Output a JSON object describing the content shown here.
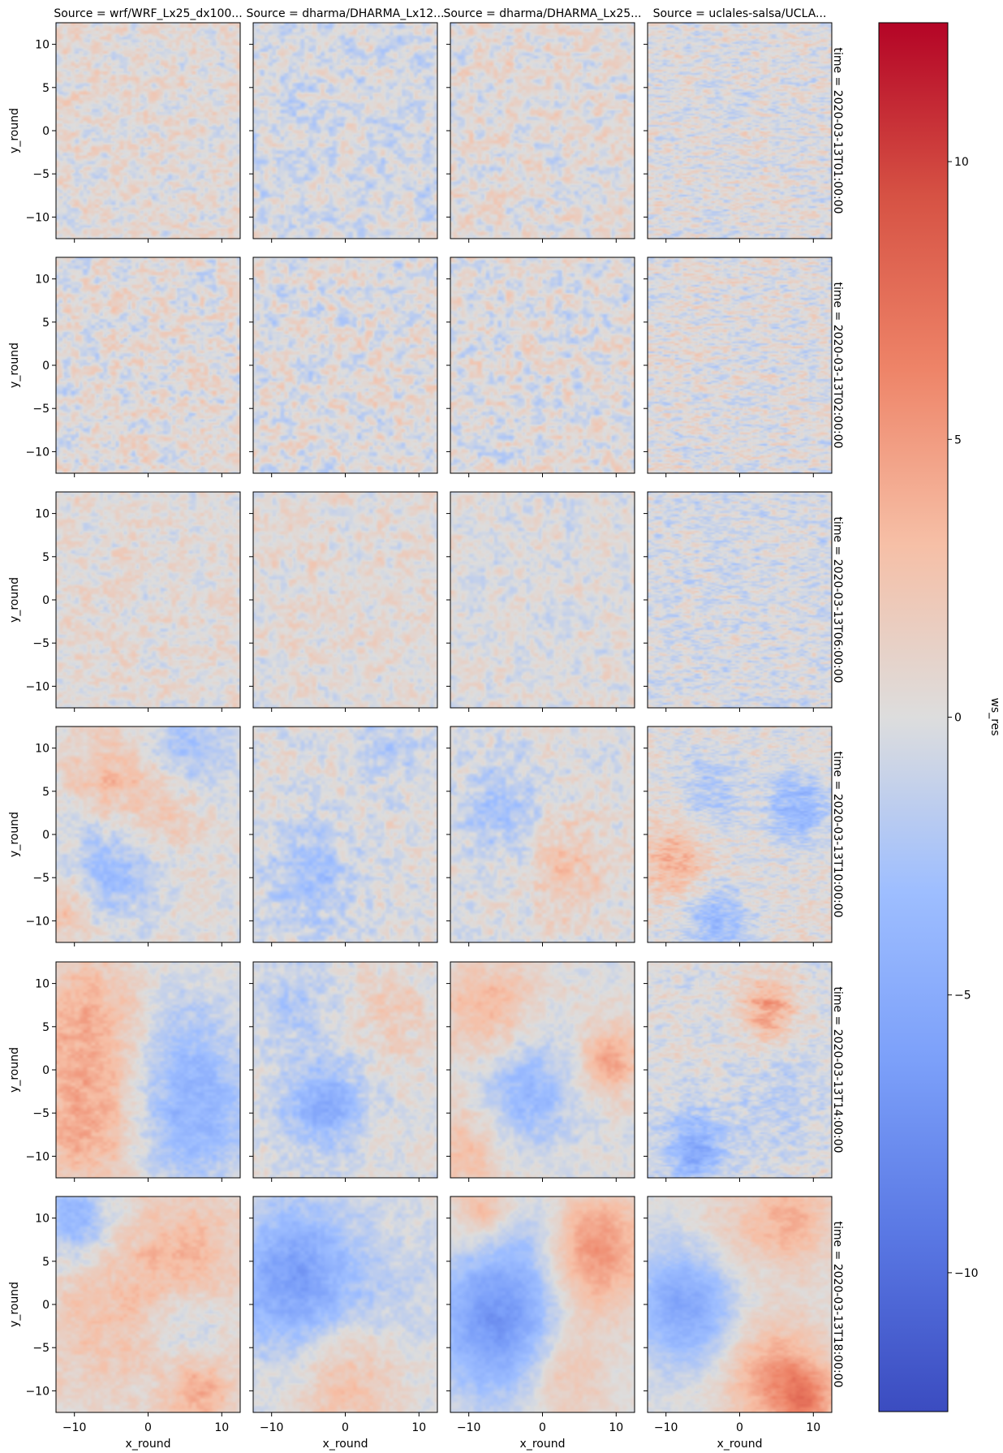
{
  "chart_data": {
    "type": "heatmap",
    "colormap": "coolwarm",
    "col_titles": [
      "Source = wrf/WRF_Lx25_dx100...",
      "Source = dharma/DHARMA_Lx12...",
      "Source = dharma/DHARMA_Lx25...",
      "Source = uclales-salsa/UCLA..."
    ],
    "row_titles": [
      "time = 2020-03-13T01:00:00",
      "time = 2020-03-13T02:00:00",
      "time = 2020-03-13T06:00:00",
      "time = 2020-03-13T10:00:00",
      "time = 2020-03-13T14:00:00",
      "time = 2020-03-13T18:00:00"
    ],
    "xlabel": "x_round",
    "ylabel": "y_round",
    "xlim": [
      -12.5,
      12.5
    ],
    "ylim": [
      -12.5,
      12.5
    ],
    "xticks": [
      -10,
      0,
      10
    ],
    "yticks": [
      -10,
      -5,
      0,
      5,
      10
    ],
    "colorbar": {
      "label": "ws_res",
      "vmin": -12.5,
      "vmax": 12.5,
      "ticks": [
        -10,
        -5,
        0,
        5,
        10
      ],
      "tick_labels": [
        "−10",
        "−5",
        "0",
        "5",
        "10"
      ]
    },
    "panel_patterns": [
      [
        {
          "blobs": [],
          "fine": 0.35,
          "bias": 0.03,
          "aniso": 1.4
        },
        {
          "blobs": [],
          "fine": 0.38,
          "bias": -0.04,
          "aniso": 1.2
        },
        {
          "blobs": [],
          "fine": 0.38,
          "bias": 0.02,
          "aniso": 1.2
        },
        {
          "blobs": [],
          "fine": 0.4,
          "bias": 0.0,
          "aniso": 3.5
        }
      ],
      [
        {
          "blobs": [],
          "fine": 0.42,
          "bias": 0.02,
          "aniso": 1.3
        },
        {
          "blobs": [],
          "fine": 0.42,
          "bias": 0.0,
          "aniso": 1.2
        },
        {
          "blobs": [],
          "fine": 0.42,
          "bias": 0.0,
          "aniso": 1.2
        },
        {
          "blobs": [],
          "fine": 0.42,
          "bias": 0.0,
          "aniso": 3.5
        }
      ],
      [
        {
          "blobs": [],
          "fine": 0.3,
          "bias": 0.03,
          "aniso": 1.3
        },
        {
          "blobs": [],
          "fine": 0.3,
          "bias": 0.03,
          "aniso": 1.1
        },
        {
          "blobs": [],
          "fine": 0.3,
          "bias": 0.0,
          "aniso": 1.1
        },
        {
          "blobs": [],
          "fine": 0.38,
          "bias": -0.03,
          "aniso": 3.0
        }
      ],
      [
        {
          "blobs": [
            {
              "x": -5,
              "y": 7,
              "v": 0.25,
              "r": 4
            },
            {
              "x": 3,
              "y": 3,
              "v": 0.2,
              "r": 4
            },
            {
              "x": 5,
              "y": 9,
              "v": -0.25,
              "r": 4
            },
            {
              "x": -5,
              "y": -4,
              "v": -0.25,
              "r": 4
            },
            {
              "x": -11,
              "y": -9,
              "v": 0.2,
              "r": 3
            }
          ],
          "fine": 0.25,
          "bias": 0.0,
          "aniso": 1.2
        },
        {
          "blobs": [
            {
              "x": -5,
              "y": -5,
              "v": -0.25,
              "r": 4
            },
            {
              "x": 6,
              "y": 10,
              "v": -0.15,
              "r": 3
            }
          ],
          "fine": 0.3,
          "bias": 0.0,
          "aniso": 1.1
        },
        {
          "blobs": [
            {
              "x": -6,
              "y": 3,
              "v": -0.2,
              "r": 4
            },
            {
              "x": 3,
              "y": -4,
              "v": 0.2,
              "r": 4
            }
          ],
          "fine": 0.3,
          "bias": 0.0,
          "aniso": 1.1
        },
        {
          "blobs": [
            {
              "x": -9,
              "y": -3,
              "v": 0.3,
              "r": 3
            },
            {
              "x": 8,
              "y": 3,
              "v": -0.35,
              "r": 3
            },
            {
              "x": -4,
              "y": 5,
              "v": -0.2,
              "r": 3
            },
            {
              "x": -3,
              "y": -10,
              "v": -0.3,
              "r": 3
            }
          ],
          "fine": 0.3,
          "bias": 0.02,
          "aniso": 2.5
        }
      ],
      [
        {
          "blobs": [
            {
              "x": -8,
              "y": 5,
              "v": 0.3,
              "r": 6
            },
            {
              "x": -8,
              "y": -7,
              "v": 0.3,
              "r": 5
            },
            {
              "x": 6,
              "y": -5,
              "v": -0.35,
              "r": 6
            },
            {
              "x": 4,
              "y": 5,
              "v": -0.15,
              "r": 5
            }
          ],
          "fine": 0.2,
          "bias": 0.02,
          "aniso": 1.3
        },
        {
          "blobs": [
            {
              "x": -3,
              "y": -4,
              "v": -0.35,
              "r": 4
            },
            {
              "x": 6,
              "y": 6,
              "v": 0.15,
              "r": 4
            },
            {
              "x": -7,
              "y": 8,
              "v": -0.15,
              "r": 4
            }
          ],
          "fine": 0.25,
          "bias": 0.0,
          "aniso": 1.1
        },
        {
          "blobs": [
            {
              "x": -7,
              "y": 6,
              "v": 0.3,
              "r": 5
            },
            {
              "x": -3,
              "y": -2,
              "v": -0.35,
              "r": 5
            },
            {
              "x": 9,
              "y": 1,
              "v": 0.35,
              "r": 3
            },
            {
              "x": -10,
              "y": -9,
              "v": 0.25,
              "r": 4
            }
          ],
          "fine": 0.2,
          "bias": 0.0,
          "aniso": 1.1
        },
        {
          "blobs": [
            {
              "x": 4,
              "y": 7,
              "v": 0.4,
              "r": 2.5
            },
            {
              "x": -6,
              "y": -9,
              "v": -0.4,
              "r": 3
            },
            {
              "x": 6,
              "y": -4,
              "v": -0.15,
              "r": 4
            }
          ],
          "fine": 0.3,
          "bias": 0.0,
          "aniso": 2.0
        }
      ],
      [
        {
          "blobs": [
            {
              "x": -10,
              "y": 10,
              "v": -0.4,
              "r": 3
            },
            {
              "x": 5,
              "y": 5,
              "v": 0.25,
              "r": 5
            },
            {
              "x": -5,
              "y": -2,
              "v": 0.15,
              "r": 6
            },
            {
              "x": 5,
              "y": -2,
              "v": -0.2,
              "r": 4
            },
            {
              "x": 7,
              "y": -10,
              "v": 0.3,
              "r": 3
            }
          ],
          "fine": 0.2,
          "bias": 0.05,
          "aniso": 1.2
        },
        {
          "blobs": [
            {
              "x": -7,
              "y": 3,
              "v": -0.5,
              "r": 6
            },
            {
              "x": 0,
              "y": -9,
              "v": 0.25,
              "r": 5
            },
            {
              "x": 7,
              "y": 2,
              "v": -0.1,
              "r": 5
            }
          ],
          "fine": 0.2,
          "bias": 0.0,
          "aniso": 1.1
        },
        {
          "blobs": [
            {
              "x": -6,
              "y": -2,
              "v": -0.55,
              "r": 6
            },
            {
              "x": 7,
              "y": 6,
              "v": 0.45,
              "r": 5
            },
            {
              "x": -8,
              "y": 11,
              "v": 0.3,
              "r": 3
            },
            {
              "x": 3,
              "y": -8,
              "v": 0.25,
              "r": 4
            },
            {
              "x": -2,
              "y": 8,
              "v": -0.15,
              "r": 4
            }
          ],
          "fine": 0.15,
          "bias": 0.0,
          "aniso": 1.1
        },
        {
          "blobs": [
            {
              "x": -7,
              "y": 0,
              "v": -0.45,
              "r": 5
            },
            {
              "x": 7,
              "y": 10,
              "v": 0.3,
              "r": 4
            },
            {
              "x": 4,
              "y": -8,
              "v": 0.35,
              "r": 5
            },
            {
              "x": -2,
              "y": 8,
              "v": 0.15,
              "r": 4
            },
            {
              "x": 9,
              "y": -11,
              "v": 0.4,
              "r": 3
            }
          ],
          "fine": 0.15,
          "bias": 0.0,
          "aniso": 1.5
        }
      ]
    ]
  }
}
